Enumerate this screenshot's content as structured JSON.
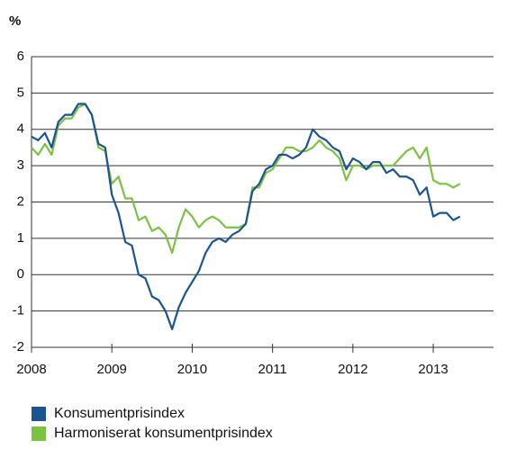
{
  "chart_data": {
    "type": "line",
    "y_label": "%",
    "x": [
      2008,
      2008.083,
      2008.167,
      2008.25,
      2008.333,
      2008.417,
      2008.5,
      2008.583,
      2008.667,
      2008.75,
      2008.833,
      2008.917,
      2009,
      2009.083,
      2009.167,
      2009.25,
      2009.333,
      2009.417,
      2009.5,
      2009.583,
      2009.667,
      2009.75,
      2009.833,
      2009.917,
      2010,
      2010.083,
      2010.167,
      2010.25,
      2010.333,
      2010.417,
      2010.5,
      2010.583,
      2010.667,
      2010.75,
      2010.833,
      2010.917,
      2011,
      2011.083,
      2011.167,
      2011.25,
      2011.333,
      2011.417,
      2011.5,
      2011.583,
      2011.667,
      2011.75,
      2011.833,
      2011.917,
      2012,
      2012.083,
      2012.167,
      2012.25,
      2012.333,
      2012.417,
      2012.5,
      2012.583,
      2012.667,
      2012.75,
      2012.833,
      2012.917,
      2013,
      2013.083,
      2013.167,
      2013.25,
      2013.333
    ],
    "series": [
      {
        "name": "Konsumentprisindex",
        "color": "#1a5592",
        "values": [
          3.8,
          3.7,
          3.9,
          3.5,
          4.2,
          4.4,
          4.4,
          4.7,
          4.7,
          4.4,
          3.6,
          3.5,
          2.2,
          1.7,
          0.9,
          0.8,
          0.0,
          -0.1,
          -0.6,
          -0.7,
          -1.0,
          -1.5,
          -0.9,
          -0.5,
          -0.2,
          0.1,
          0.6,
          0.9,
          1.0,
          0.9,
          1.1,
          1.2,
          1.4,
          2.3,
          2.5,
          2.9,
          3.0,
          3.3,
          3.3,
          3.2,
          3.3,
          3.5,
          4.0,
          3.8,
          3.7,
          3.5,
          3.4,
          2.9,
          3.2,
          3.1,
          2.9,
          3.1,
          3.1,
          2.8,
          2.9,
          2.7,
          2.7,
          2.6,
          2.2,
          2.4,
          1.6,
          1.7,
          1.7,
          1.5,
          1.6
        ]
      },
      {
        "name": "Harmoniserat konsumentprisindex",
        "color": "#7cc242",
        "values": [
          3.5,
          3.3,
          3.6,
          3.3,
          4.1,
          4.3,
          4.3,
          4.6,
          4.7,
          4.4,
          3.5,
          3.4,
          2.5,
          2.7,
          2.1,
          2.1,
          1.5,
          1.6,
          1.2,
          1.3,
          1.1,
          0.6,
          1.3,
          1.8,
          1.6,
          1.3,
          1.5,
          1.6,
          1.5,
          1.3,
          1.3,
          1.3,
          1.4,
          2.4,
          2.4,
          2.8,
          2.9,
          3.2,
          3.5,
          3.5,
          3.4,
          3.4,
          3.5,
          3.7,
          3.5,
          3.4,
          3.2,
          2.6,
          3.0,
          3.0,
          2.9,
          3.0,
          3.0,
          3.0,
          3.0,
          3.2,
          3.4,
          3.5,
          3.2,
          3.5,
          2.6,
          2.5,
          2.5,
          2.4,
          2.5
        ]
      }
    ],
    "xlim": [
      2008,
      2013.75
    ],
    "xticks": [
      2008,
      2009,
      2010,
      2011,
      2012,
      2013
    ],
    "ylim": [
      -2,
      6
    ],
    "yticks": [
      -2,
      -1,
      0,
      1,
      2,
      3,
      4,
      5,
      6
    ],
    "grid": true,
    "legend": "bottom"
  }
}
